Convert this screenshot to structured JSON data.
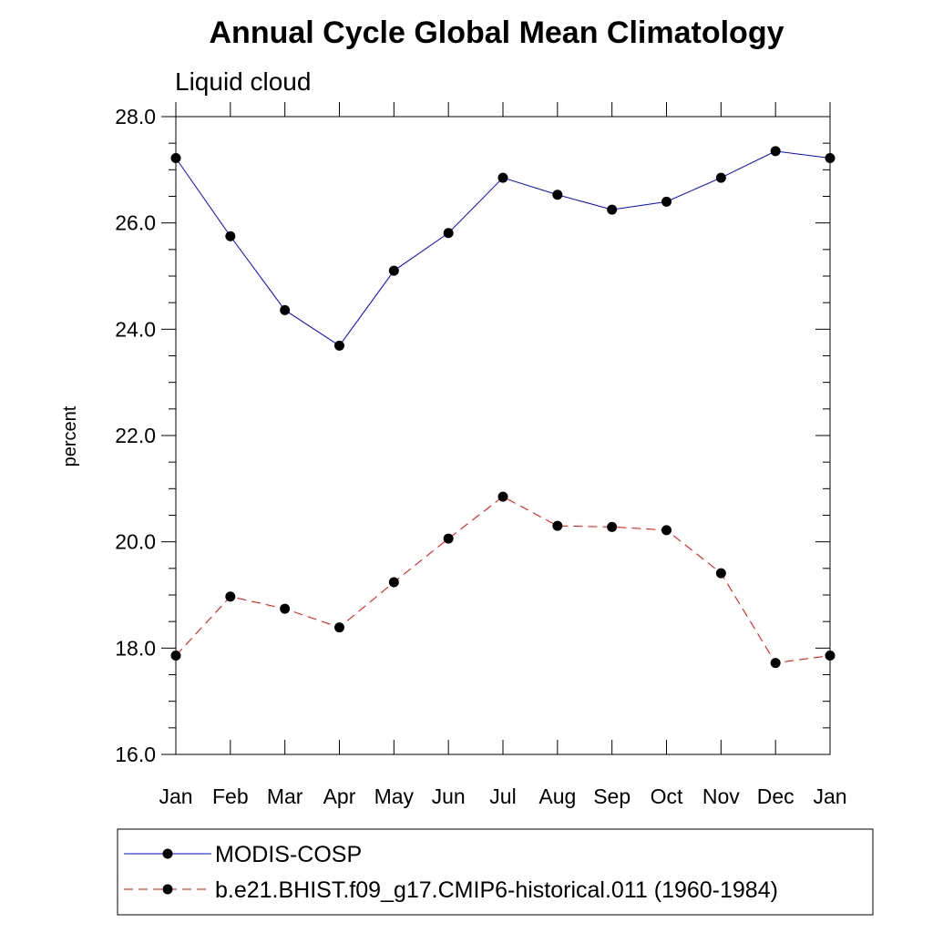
{
  "chart_data": {
    "type": "line",
    "title": "Annual Cycle Global Mean Climatology",
    "subtitle": "Liquid cloud",
    "xlabel": "",
    "ylabel": "percent",
    "categories": [
      "Jan",
      "Feb",
      "Mar",
      "Apr",
      "May",
      "Jun",
      "Jul",
      "Aug",
      "Sep",
      "Oct",
      "Nov",
      "Dec",
      "Jan"
    ],
    "ylim": [
      16.0,
      28.0
    ],
    "yticks": [
      16.0,
      18.0,
      20.0,
      22.0,
      24.0,
      26.0,
      28.0
    ],
    "ytick_labels": [
      "16.0",
      "18.0",
      "20.0",
      "22.0",
      "24.0",
      "26.0",
      "28.0"
    ],
    "grid": false,
    "legend_position": "bottom",
    "series": [
      {
        "name": "MODIS-COSP",
        "color": "#0000ff",
        "style": "solid",
        "marker": "circle",
        "values": [
          27.22,
          25.75,
          24.36,
          23.69,
          25.1,
          25.81,
          26.85,
          26.53,
          26.25,
          26.4,
          26.85,
          27.35,
          27.22
        ]
      },
      {
        "name": "b.e21.BHIST.f09_g17.CMIP6-historical.011 (1960-1984)",
        "color": "#ff0000",
        "style": "dashed",
        "marker": "circle",
        "values": [
          17.86,
          18.97,
          18.74,
          18.39,
          19.24,
          20.06,
          20.85,
          20.3,
          20.28,
          20.22,
          19.41,
          17.72,
          17.86
        ]
      }
    ]
  }
}
